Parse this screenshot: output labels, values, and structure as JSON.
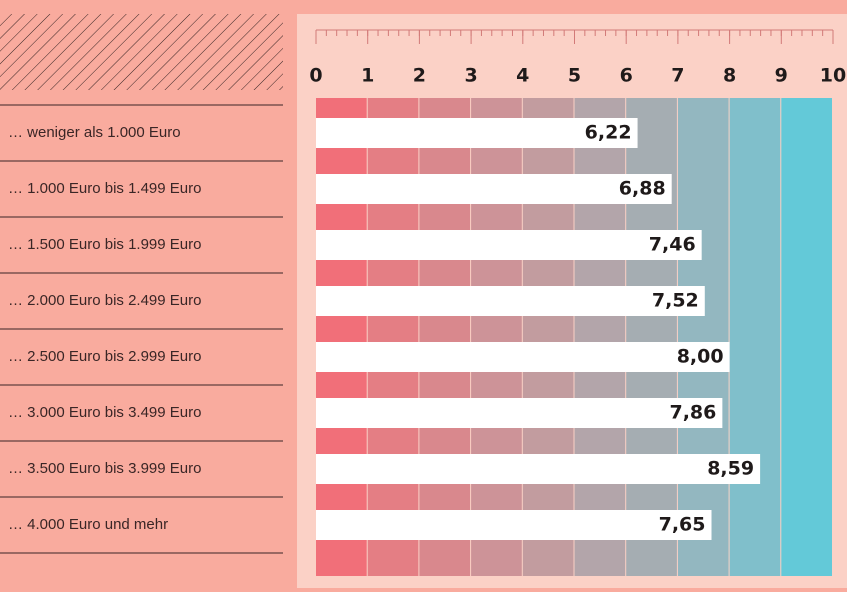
{
  "chart_data": {
    "type": "bar",
    "categories": [
      "… weniger als 1.000 Euro",
      "… 1.000 Euro bis 1.499 Euro",
      "… 1.500 Euro bis 1.999 Euro",
      "… 2.000 Euro bis 2.499 Euro",
      "… 2.500 Euro bis 2.999 Euro",
      "… 3.000 Euro bis 3.499 Euro",
      "… 3.500 Euro bis 3.999 Euro",
      "… 4.000 Euro und mehr"
    ],
    "values": [
      6.22,
      6.88,
      7.46,
      7.52,
      8.0,
      7.86,
      8.59,
      7.65
    ],
    "value_labels": [
      "6,22",
      "6,88",
      "7,46",
      "7,52",
      "8,00",
      "7,86",
      "8,59",
      "7,65"
    ],
    "color": "#ffffff",
    "column_colors": [
      "#f16f79",
      "#e47e84",
      "#d9888d",
      "#cd9398",
      "#c29c9f",
      "#b3a5aa",
      "#a5adb2",
      "#93b7c0",
      "#80bfcb",
      "#63c9d8"
    ],
    "xlim": [
      0,
      10
    ],
    "xticks": [
      0,
      1,
      2,
      3,
      4,
      5,
      6,
      7,
      8,
      9,
      10
    ]
  }
}
